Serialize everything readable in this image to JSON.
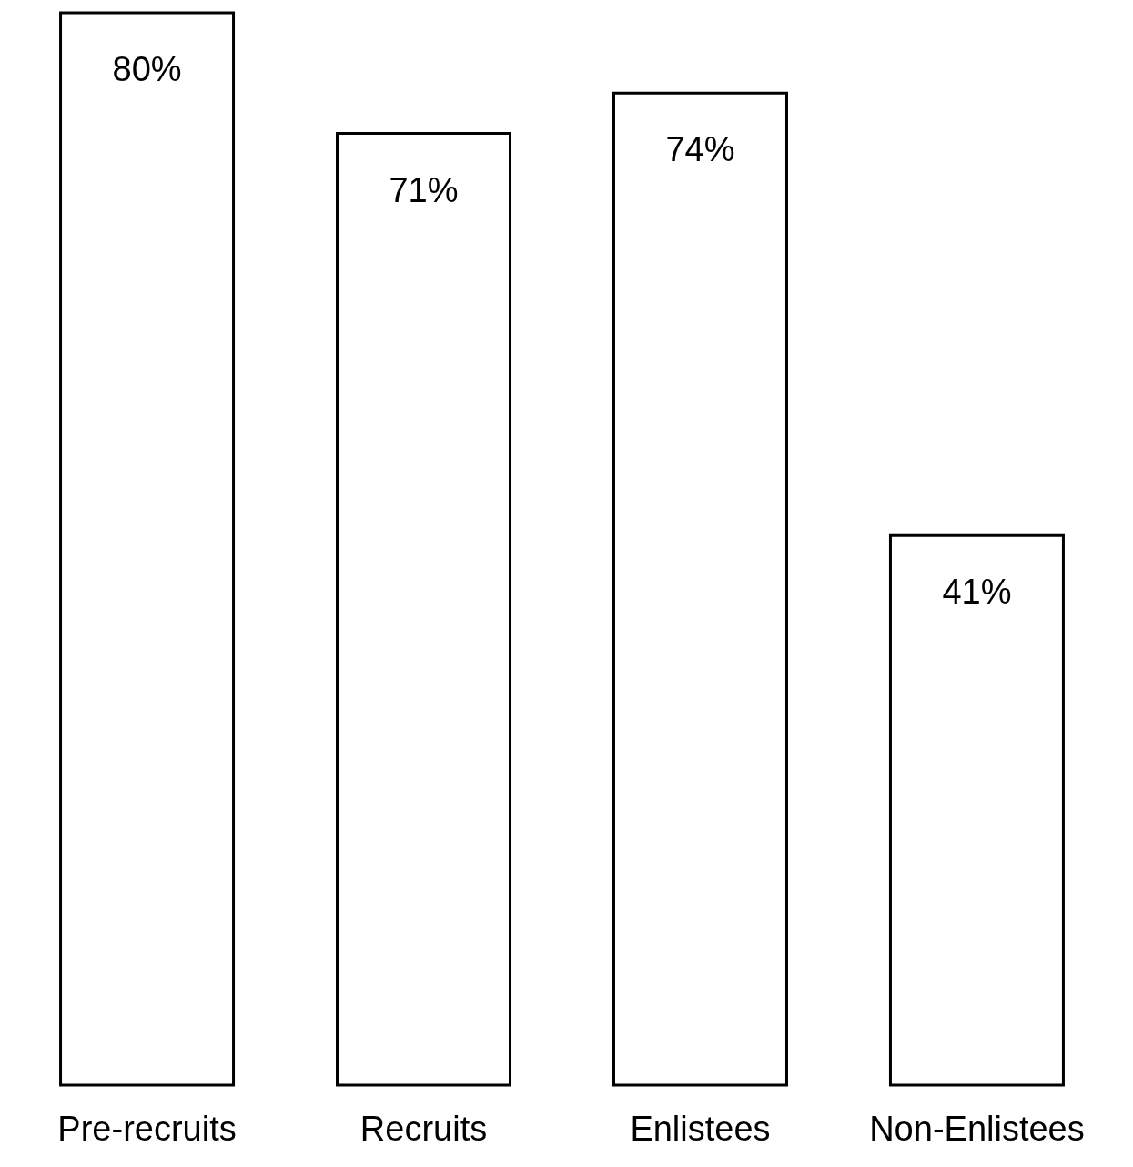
{
  "chart_data": {
    "type": "bar",
    "categories": [
      "Pre-recruits",
      "Recruits",
      "Enlistees",
      "Non-Enlistees"
    ],
    "values": [
      80,
      71,
      74,
      41
    ],
    "value_labels": [
      "80%",
      "71%",
      "74%",
      "41%"
    ],
    "color": "#ffffff",
    "tick_labels": "x"
  }
}
